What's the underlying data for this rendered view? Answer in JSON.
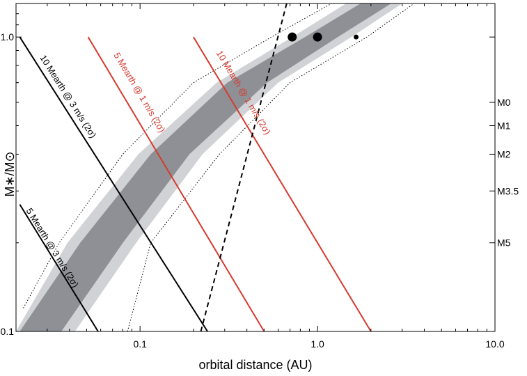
{
  "chart_data": {
    "type": "line",
    "title": "",
    "xlabel": "orbital distance (AU)",
    "ylabel": "M∗/M⊙",
    "x_scale": "log",
    "y_scale": "log",
    "xlim": [
      0.02,
      10.0
    ],
    "ylim": [
      0.1,
      1.3
    ],
    "x_ticks": [
      {
        "value": 0.1,
        "label": "0.1"
      },
      {
        "value": 1.0,
        "label": "1.0"
      },
      {
        "value": 10.0,
        "label": "10.0"
      }
    ],
    "y_ticks": [
      {
        "value": 0.1,
        "label": "0.1"
      },
      {
        "value": 1.0,
        "label": "1.0"
      }
    ],
    "spectral_type_ticks": [
      {
        "mass": 0.6,
        "label": "M0"
      },
      {
        "mass": 0.5,
        "label": "M1"
      },
      {
        "mass": 0.4,
        "label": "M2"
      },
      {
        "mass": 0.3,
        "label": "M3.5"
      },
      {
        "mass": 0.2,
        "label": "M5"
      }
    ],
    "habitable_zone": {
      "inner_band_color": "#8e9095",
      "outer_band_color": "#d0d2d5",
      "inner_band": {
        "lower": [
          [
            0.036,
            0.1
          ],
          [
            0.08,
            0.2
          ],
          [
            0.19,
            0.4
          ],
          [
            0.52,
            0.7
          ],
          [
            1.3,
            1.0
          ],
          [
            2.6,
            1.3
          ]
        ],
        "upper": [
          [
            0.021,
            0.1
          ],
          [
            0.046,
            0.2
          ],
          [
            0.115,
            0.4
          ],
          [
            0.31,
            0.7
          ],
          [
            0.85,
            1.0
          ],
          [
            1.75,
            1.3
          ]
        ]
      },
      "outer_band": {
        "lower": [
          [
            0.043,
            0.1
          ],
          [
            0.095,
            0.2
          ],
          [
            0.225,
            0.4
          ],
          [
            0.6,
            0.7
          ],
          [
            1.55,
            1.0
          ],
          [
            3.0,
            1.3
          ]
        ],
        "upper": [
          [
            0.02,
            0.1
          ],
          [
            0.039,
            0.2
          ],
          [
            0.098,
            0.4
          ],
          [
            0.27,
            0.7
          ],
          [
            0.72,
            1.0
          ],
          [
            1.45,
            1.3
          ]
        ]
      },
      "dotted_bounds": {
        "lower": [
          [
            0.085,
            0.1
          ],
          [
            0.115,
            0.2
          ],
          [
            0.28,
            0.4
          ],
          [
            0.7,
            0.7
          ],
          [
            1.9,
            1.0
          ],
          [
            3.5,
            1.3
          ]
        ],
        "upper": [
          [
            0.022,
            0.12
          ],
          [
            0.035,
            0.2
          ],
          [
            0.08,
            0.4
          ],
          [
            0.2,
            0.7
          ],
          [
            0.55,
            1.0
          ],
          [
            1.2,
            1.3
          ]
        ]
      }
    },
    "series": [
      {
        "name": "10 Mearth @ 3 m/s (2σ)",
        "color": "#000000",
        "dash": false,
        "points": [
          [
            0.021,
            1.0
          ],
          [
            0.24,
            0.1
          ]
        ],
        "label_at": [
          0.038,
          0.62
        ]
      },
      {
        "name": "5 Mearth @ 3 m/s (2σ)",
        "color": "#000000",
        "dash": false,
        "points": [
          [
            0.021,
            0.27
          ],
          [
            0.058,
            0.1
          ]
        ],
        "label_at": [
          0.031,
          0.19
        ]
      },
      {
        "name": "5 Mearth @ 1 m/s (2σ)",
        "color": "#d63a2e",
        "dash": false,
        "points": [
          [
            0.051,
            1.0
          ],
          [
            0.5,
            0.1
          ]
        ],
        "label_at": [
          0.096,
          0.64
        ]
      },
      {
        "name": "10 Mearth @ 1 m/s (2σ)",
        "color": "#d63a2e",
        "dash": false,
        "points": [
          [
            0.2,
            1.0
          ],
          [
            2.0,
            0.1
          ]
        ],
        "label_at": [
          0.37,
          0.64
        ]
      },
      {
        "name": "",
        "color": "#000000",
        "dash": true,
        "points": [
          [
            0.22,
            0.1
          ],
          [
            0.67,
            1.3
          ]
        ]
      }
    ],
    "planets": [
      {
        "x": 0.72,
        "y": 1.0,
        "r": 6.5
      },
      {
        "x": 1.0,
        "y": 1.0,
        "r": 6.5
      },
      {
        "x": 1.65,
        "y": 1.0,
        "r": 3.5
      }
    ]
  }
}
